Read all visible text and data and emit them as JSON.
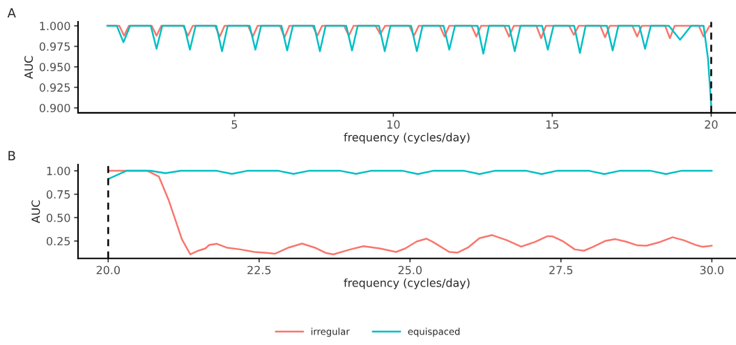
{
  "chart_data": [
    {
      "type": "line",
      "title": "A",
      "xlabel": "frequency (cycles/day)",
      "ylabel": "AUC",
      "xlim": [
        0.08,
        20.78
      ],
      "ylim": [
        0.894,
        1.005
      ],
      "xticks": [
        5,
        10,
        15,
        20
      ],
      "yticks": [
        {
          "value": 0.9,
          "label": "0.900"
        },
        {
          "value": 0.925,
          "label": "0.925"
        },
        {
          "value": 0.95,
          "label": "0.950"
        },
        {
          "value": 0.975,
          "label": "0.975"
        },
        {
          "value": 1.0,
          "label": "1.000"
        }
      ],
      "grid": false,
      "ref_lines": [
        {
          "axis": "x",
          "value": 20,
          "color": "#000000",
          "line_style": "dashed"
        }
      ],
      "series": [
        {
          "color": "#f8766d",
          "x": [
            1.0,
            1.38,
            1.53,
            1.68,
            2.4,
            2.55,
            2.7,
            3.39,
            3.54,
            3.69,
            4.39,
            4.54,
            4.69,
            5.43,
            5.58,
            5.73,
            6.43,
            6.58,
            6.73,
            7.46,
            7.61,
            7.76,
            8.45,
            8.6,
            8.75,
            9.44,
            9.59,
            9.74,
            10.5,
            10.65,
            10.8,
            11.46,
            11.61,
            11.76,
            12.46,
            12.61,
            12.76,
            13.49,
            13.64,
            13.79,
            14.5,
            14.65,
            14.8,
            15.53,
            15.68,
            15.83,
            16.51,
            16.66,
            16.81,
            17.52,
            17.67,
            17.82,
            18.55,
            18.7,
            18.85,
            19.61,
            19.76,
            19.95
          ],
          "values": [
            1.0,
            1.0,
            0.988,
            1.0,
            1.0,
            0.988,
            1.0,
            1.0,
            0.988,
            1.0,
            1.0,
            0.987,
            1.0,
            1.0,
            0.987,
            1.0,
            1.0,
            0.986,
            1.0,
            1.0,
            0.988,
            1.0,
            1.0,
            0.988,
            1.0,
            1.0,
            0.99,
            1.0,
            1.0,
            0.988,
            1.0,
            1.0,
            0.987,
            1.0,
            1.0,
            0.987,
            1.0,
            1.0,
            0.987,
            1.0,
            1.0,
            0.985,
            1.0,
            1.0,
            0.989,
            1.0,
            1.0,
            0.986,
            1.0,
            1.0,
            0.987,
            1.0,
            1.0,
            0.985,
            1.0,
            1.0,
            0.987,
            1.0
          ]
        },
        {
          "color": "#00bfc4",
          "x": [
            1.0,
            1.3,
            1.51,
            1.72,
            2.37,
            2.55,
            2.73,
            3.42,
            3.6,
            3.78,
            4.43,
            4.61,
            4.79,
            5.48,
            5.66,
            5.84,
            6.48,
            6.66,
            6.84,
            7.51,
            7.69,
            7.87,
            8.52,
            8.7,
            8.88,
            9.55,
            9.73,
            9.91,
            10.56,
            10.74,
            10.92,
            11.58,
            11.76,
            11.94,
            12.65,
            12.83,
            13.01,
            13.64,
            13.82,
            14.0,
            14.68,
            14.86,
            15.04,
            15.69,
            15.87,
            16.05,
            16.72,
            16.9,
            17.08,
            17.74,
            17.92,
            18.1,
            18.67,
            19.02,
            19.37,
            19.76,
            19.9,
            20.0
          ],
          "values": [
            1.0,
            1.0,
            0.98,
            1.0,
            1.0,
            0.972,
            1.0,
            1.0,
            0.971,
            1.0,
            1.0,
            0.969,
            1.0,
            1.0,
            0.971,
            1.0,
            1.0,
            0.97,
            1.0,
            1.0,
            0.969,
            1.0,
            1.0,
            0.97,
            1.0,
            1.0,
            0.969,
            1.0,
            1.0,
            0.969,
            1.0,
            1.0,
            0.971,
            1.0,
            1.0,
            0.966,
            1.0,
            1.0,
            0.969,
            1.0,
            1.0,
            0.971,
            1.0,
            1.0,
            0.967,
            1.0,
            1.0,
            0.97,
            1.0,
            1.0,
            0.972,
            1.0,
            1.0,
            0.983,
            1.0,
            1.0,
            0.96,
            0.903
          ]
        }
      ]
    },
    {
      "type": "line",
      "title": "B",
      "xlabel": "frequency (cycles/day)",
      "ylabel": "AUC",
      "xlim": [
        19.5,
        30.4
      ],
      "ylim": [
        0.064,
        1.067
      ],
      "xticks": [
        {
          "value": 20,
          "label": "20.0"
        },
        {
          "value": 22.5,
          "label": "22.5"
        },
        {
          "value": 25,
          "label": "25.0"
        },
        {
          "value": 27.5,
          "label": "27.5"
        },
        {
          "value": 30,
          "label": "30.0"
        }
      ],
      "yticks": [
        {
          "value": 0.25,
          "label": "0.25"
        },
        {
          "value": 0.5,
          "label": "0.50"
        },
        {
          "value": 0.75,
          "label": "0.75"
        },
        {
          "value": 1.0,
          "label": "1.00"
        }
      ],
      "grid": false,
      "legend": "bottom",
      "ref_lines": [
        {
          "axis": "x",
          "value": 20,
          "color": "#000000",
          "line_style": "dashed"
        }
      ],
      "series": [
        {
          "name": "irregular",
          "color": "#f8766d",
          "x": [
            20.0,
            20.65,
            20.84,
            21.0,
            21.13,
            21.22,
            21.36,
            21.48,
            21.61,
            21.67,
            21.8,
            21.96,
            22.19,
            22.42,
            22.65,
            22.76,
            22.99,
            23.21,
            23.42,
            23.61,
            23.73,
            24.0,
            24.23,
            24.5,
            24.77,
            24.92,
            25.11,
            25.27,
            25.38,
            25.65,
            25.79,
            25.96,
            26.15,
            26.36,
            26.61,
            26.84,
            27.07,
            27.27,
            27.36,
            27.54,
            27.73,
            27.88,
            28.04,
            28.23,
            28.4,
            28.57,
            28.77,
            28.92,
            29.12,
            29.35,
            29.54,
            29.73,
            29.85,
            30.0
          ],
          "values": [
            1.0,
            1.0,
            0.938,
            0.69,
            0.443,
            0.27,
            0.107,
            0.144,
            0.17,
            0.207,
            0.22,
            0.18,
            0.16,
            0.133,
            0.121,
            0.114,
            0.18,
            0.222,
            0.18,
            0.121,
            0.107,
            0.158,
            0.195,
            0.17,
            0.133,
            0.17,
            0.245,
            0.275,
            0.24,
            0.133,
            0.126,
            0.18,
            0.28,
            0.313,
            0.257,
            0.19,
            0.24,
            0.3,
            0.3,
            0.245,
            0.16,
            0.146,
            0.19,
            0.25,
            0.27,
            0.245,
            0.203,
            0.2,
            0.235,
            0.29,
            0.257,
            0.208,
            0.188,
            0.2
          ]
        },
        {
          "name": "equispaced",
          "color": "#00bfc4",
          "x": [
            20.0,
            20.3,
            20.7,
            20.95,
            21.2,
            21.8,
            22.05,
            22.3,
            22.82,
            23.07,
            23.32,
            23.85,
            24.1,
            24.35,
            24.88,
            25.13,
            25.38,
            25.9,
            26.15,
            26.4,
            26.93,
            27.18,
            27.43,
            27.97,
            28.22,
            28.47,
            28.99,
            29.24,
            29.49,
            30.0
          ],
          "values": [
            0.913,
            1.0,
            1.0,
            0.975,
            1.0,
            1.0,
            0.968,
            1.0,
            1.0,
            0.968,
            1.0,
            1.0,
            0.968,
            1.0,
            1.0,
            0.965,
            1.0,
            1.0,
            0.965,
            1.0,
            1.0,
            0.965,
            1.0,
            1.0,
            0.965,
            1.0,
            1.0,
            0.965,
            1.0,
            1.0
          ]
        }
      ]
    }
  ]
}
